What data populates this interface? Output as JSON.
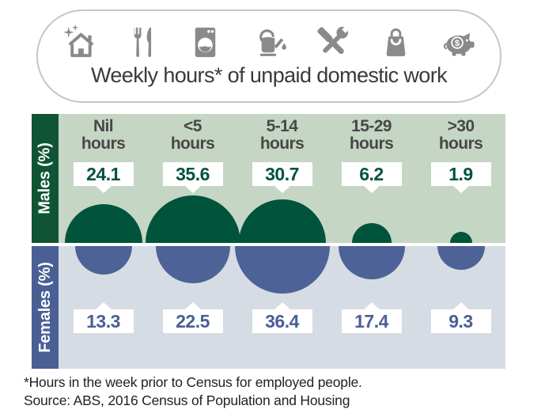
{
  "header": {
    "title": "Weekly hours* of unpaid domestic work",
    "icons": [
      "house-cleaning-icon",
      "cooking-cutlery-icon",
      "laundry-washing-machine-icon",
      "gardening-watering-can-icon",
      "home-maintenance-tools-icon",
      "shopping-bag-icon",
      "household-finances-piggy-bank-icon"
    ]
  },
  "chart_data": {
    "type": "bar",
    "glyph": "proportional-area-circles",
    "title": "Weekly hours* of unpaid domestic work",
    "value_unit": "percent",
    "categories": [
      "Nil hours",
      "<5 hours",
      "5-14 hours",
      "15-29 hours",
      ">30 hours"
    ],
    "series": [
      {
        "name": "Males (%)",
        "values": [
          24.1,
          35.6,
          30.7,
          6.2,
          1.9
        ]
      },
      {
        "name": "Females (%)",
        "values": [
          13.3,
          22.5,
          36.4,
          17.4,
          9.3
        ]
      }
    ],
    "legend_position": "left-sidebars",
    "scaling": "circle radius proportional to square root of value"
  },
  "footer": {
    "note": "*Hours in the week prior to Census for employed people.",
    "source": "Source: ABS, 2016 Census of Population and Housing"
  },
  "colors": {
    "male_dark": "#0f5434",
    "male_circle": "#00543c",
    "male_bg": "#c6d6c5",
    "female_dark": "#4a5f94",
    "female_circle": "#4d6296",
    "female_bg": "#d6dce4",
    "label_gray": "#474747",
    "title_gray": "#3a3a3a",
    "icon_gray": "#8a8a8a",
    "pill_border": "#c6c6c6",
    "footer_text": "#222222"
  }
}
